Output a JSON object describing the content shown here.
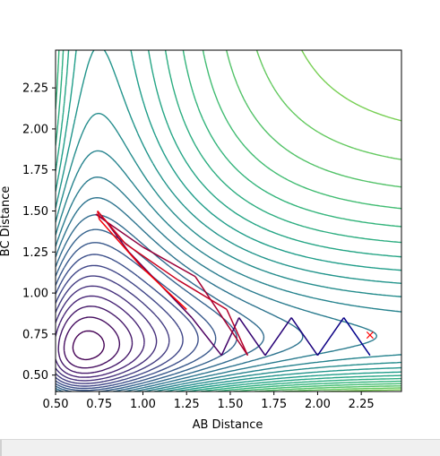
{
  "chart_data": {
    "type": "contour",
    "title": "",
    "xlabel": "AB Distance",
    "ylabel": "BC Distance",
    "xlim": [
      0.5,
      2.48
    ],
    "ylim": [
      0.4,
      2.48
    ],
    "xticks": [
      "0.50",
      "0.75",
      "1.00",
      "1.25",
      "1.50",
      "1.75",
      "2.00",
      "2.25"
    ],
    "yticks": [
      "0.50",
      "0.75",
      "1.00",
      "1.25",
      "1.50",
      "1.75",
      "2.00",
      "2.25"
    ],
    "grid": false,
    "legend": "none",
    "colormap": "viridis",
    "contour_levels": 30,
    "trajectory_marker": {
      "label": "×",
      "x": 2.3,
      "y": 0.74,
      "color": "#ff0000"
    },
    "trajectory_color_start": "#00008b",
    "trajectory_color_end": "#ff0000",
    "trajectory": {
      "x": [
        2.3,
        2.15,
        2.0,
        1.85,
        1.7,
        1.55,
        1.45,
        1.28,
        1.1,
        0.92,
        0.78,
        0.73,
        1.0,
        1.3,
        1.6,
        1.48,
        1.2,
        0.9,
        0.74,
        0.75,
        1.0,
        1.25
      ],
      "y": [
        0.62,
        0.85,
        0.62,
        0.85,
        0.62,
        0.85,
        0.62,
        0.85,
        1.05,
        1.25,
        1.45,
        1.48,
        1.28,
        1.1,
        0.62,
        0.9,
        1.08,
        1.3,
        1.5,
        1.45,
        1.15,
        0.9
      ]
    }
  }
}
